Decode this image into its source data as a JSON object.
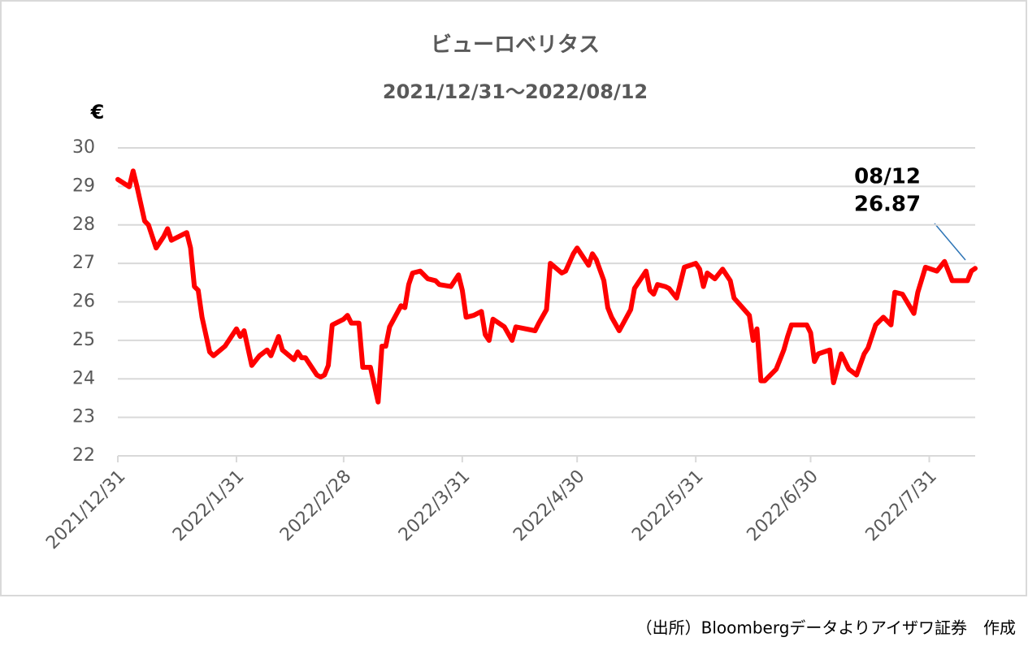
{
  "chart_data": {
    "type": "line",
    "title": "ビューロベリタス",
    "subtitle": "2021/12/31～2022/08/12",
    "y_label": "€",
    "annotation": [
      "08/12",
      "26.87"
    ],
    "source": "（出所）Bloombergデータよりアイザワ証券　作成",
    "x": [
      "2021/12/31",
      "2022/1/3",
      "2022/1/4",
      "2022/1/5",
      "2022/1/7",
      "2022/1/8",
      "2022/1/10",
      "2022/1/12",
      "2022/1/13",
      "2022/1/14",
      "2022/1/18",
      "2022/1/19",
      "2022/1/20",
      "2022/1/21",
      "2022/1/22",
      "2022/1/24",
      "2022/1/25",
      "2022/1/28",
      "2022/1/31",
      "2022/2/1",
      "2022/2/2",
      "2022/2/4",
      "2022/2/6",
      "2022/2/8",
      "2022/2/9",
      "2022/2/11",
      "2022/2/12",
      "2022/2/15",
      "2022/2/16",
      "2022/2/17",
      "2022/2/18",
      "2022/2/21",
      "2022/2/22",
      "2022/2/23",
      "2022/2/24",
      "2022/2/25",
      "2022/2/28",
      "2022/3/1",
      "2022/3/2",
      "2022/3/4",
      "2022/3/5",
      "2022/3/7",
      "2022/3/9",
      "2022/3/10",
      "2022/3/11",
      "2022/3/12",
      "2022/3/15",
      "2022/3/16",
      "2022/3/17",
      "2022/3/18",
      "2022/3/20",
      "2022/3/22",
      "2022/3/24",
      "2022/3/25",
      "2022/3/28",
      "2022/3/30",
      "2022/3/31",
      "2022/4/1",
      "2022/4/3",
      "2022/4/5",
      "2022/4/6",
      "2022/4/7",
      "2022/4/8",
      "2022/4/11",
      "2022/4/13",
      "2022/4/14",
      "2022/4/19",
      "2022/4/20",
      "2022/4/22",
      "2022/4/23",
      "2022/4/26",
      "2022/4/27",
      "2022/4/29",
      "2022/4/30",
      "2022/5/2",
      "2022/5/3",
      "2022/5/4",
      "2022/5/5",
      "2022/5/7",
      "2022/5/8",
      "2022/5/9",
      "2022/5/11",
      "2022/5/14",
      "2022/5/15",
      "2022/5/16",
      "2022/5/18",
      "2022/5/19",
      "2022/5/20",
      "2022/5/21",
      "2022/5/23",
      "2022/5/24",
      "2022/5/26",
      "2022/5/28",
      "2022/5/31",
      "2022/6/1",
      "2022/6/2",
      "2022/6/3",
      "2022/6/5",
      "2022/6/7",
      "2022/6/9",
      "2022/6/10",
      "2022/6/14",
      "2022/6/15",
      "2022/6/16",
      "2022/6/17",
      "2022/6/18",
      "2022/6/21",
      "2022/6/22",
      "2022/6/23",
      "2022/6/24",
      "2022/6/25",
      "2022/6/29",
      "2022/6/30",
      "2022/7/1",
      "2022/7/2",
      "2022/7/5",
      "2022/7/6",
      "2022/7/8",
      "2022/7/10",
      "2022/7/12",
      "2022/7/14",
      "2022/7/15",
      "2022/7/17",
      "2022/7/19",
      "2022/7/21",
      "2022/7/22",
      "2022/7/24",
      "2022/7/27",
      "2022/7/28",
      "2022/7/30",
      "2022/8/2",
      "2022/8/4",
      "2022/8/6",
      "2022/8/10",
      "2022/8/11",
      "2022/8/12"
    ],
    "series": [
      {
        "name": "ビューロベリタス",
        "color": "#ff0000",
        "values": [
          29.18,
          28.99,
          29.4,
          29.0,
          28.1,
          28.0,
          27.4,
          27.7,
          27.9,
          27.6,
          27.8,
          27.4,
          26.4,
          26.3,
          25.6,
          24.7,
          24.6,
          24.85,
          25.3,
          25.1,
          25.25,
          24.35,
          24.6,
          24.75,
          24.6,
          25.1,
          24.75,
          24.5,
          24.7,
          24.55,
          24.55,
          24.1,
          24.05,
          24.1,
          24.35,
          25.4,
          25.55,
          25.65,
          25.45,
          25.45,
          24.3,
          24.3,
          23.4,
          24.85,
          24.85,
          25.35,
          25.9,
          25.85,
          26.45,
          26.75,
          26.8,
          26.6,
          26.55,
          26.45,
          26.4,
          26.7,
          26.3,
          25.6,
          25.65,
          25.75,
          25.15,
          25.0,
          25.55,
          25.35,
          25.0,
          25.35,
          25.25,
          25.45,
          25.8,
          27.0,
          26.75,
          26.8,
          27.25,
          27.4,
          27.1,
          26.95,
          27.25,
          27.1,
          26.55,
          25.85,
          25.6,
          25.25,
          25.8,
          26.35,
          26.5,
          26.8,
          26.3,
          26.2,
          26.45,
          26.4,
          26.35,
          26.1,
          26.9,
          27.0,
          26.85,
          26.4,
          26.75,
          26.6,
          26.85,
          26.55,
          26.1,
          25.65,
          25.0,
          25.3,
          23.95,
          23.95,
          24.25,
          24.5,
          24.75,
          25.1,
          25.4,
          25.4,
          25.2,
          24.45,
          24.65,
          24.75,
          23.9,
          24.65,
          24.25,
          24.1,
          24.65,
          24.8,
          25.4,
          25.6,
          25.4,
          26.25,
          26.2,
          25.7,
          26.25,
          26.9,
          26.8,
          27.05,
          26.55,
          26.55,
          26.8,
          26.87
        ]
      }
    ],
    "xlim": [
      "2021/12/31",
      "2022/8/12"
    ],
    "xticks": [
      "2021/12/31",
      "2022/1/31",
      "2022/2/28",
      "2022/3/31",
      "2022/4/30",
      "2022/5/31",
      "2022/6/30",
      "2022/7/31"
    ],
    "ylim": [
      22,
      30
    ],
    "yticks": [
      22,
      23,
      24,
      25,
      26,
      27,
      28,
      29,
      30
    ],
    "grid": true
  }
}
